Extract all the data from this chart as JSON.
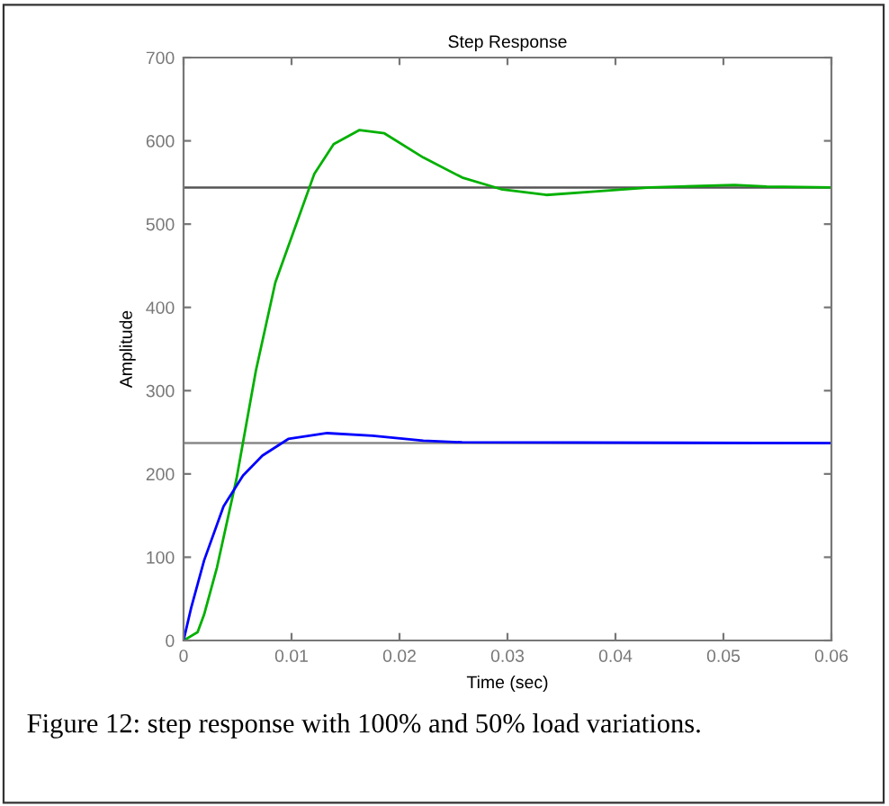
{
  "chart_data": {
    "type": "line",
    "title": "Step Response",
    "xlabel": "Time (sec)",
    "ylabel": "Amplitude",
    "xlim": [
      0,
      0.06
    ],
    "xticks": [
      0,
      0.01,
      0.02,
      0.03,
      0.04,
      0.05,
      0.06
    ],
    "ylim": [
      0,
      700
    ],
    "yticks": [
      0,
      100,
      200,
      300,
      400,
      500,
      600,
      700
    ],
    "grid": false,
    "legend": false,
    "series": [
      {
        "color": "#00b000",
        "x": [
          0,
          0.0013,
          0.0019,
          0.0031,
          0.0049,
          0.0067,
          0.0085,
          0.0103,
          0.0121,
          0.0139,
          0.0163,
          0.0186,
          0.0222,
          0.0258,
          0.0294,
          0.0336,
          0.0378,
          0.0432,
          0.051,
          0.054,
          0.06
        ],
        "values": [
          0,
          10,
          31,
          88,
          194,
          324,
          430,
          495,
          560,
          596,
          613,
          609,
          580,
          556,
          542,
          535,
          539,
          544,
          547,
          545,
          544
        ]
      },
      {
        "color": "#0000ff",
        "x": [
          0,
          0.0007,
          0.0019,
          0.0037,
          0.0055,
          0.0073,
          0.0097,
          0.0133,
          0.0175,
          0.0222,
          0.0258,
          0.06
        ],
        "values": [
          0,
          39,
          96,
          161,
          198,
          222,
          242,
          249,
          246,
          240,
          238,
          237
        ]
      }
    ],
    "ref_lines": [
      {
        "axis": "y",
        "value": 544,
        "color": "#555555"
      },
      {
        "axis": "y",
        "value": 237,
        "color": "#888888"
      }
    ],
    "annotations": [
      "Figure 12: step response with 100% and 50% load variations."
    ]
  }
}
